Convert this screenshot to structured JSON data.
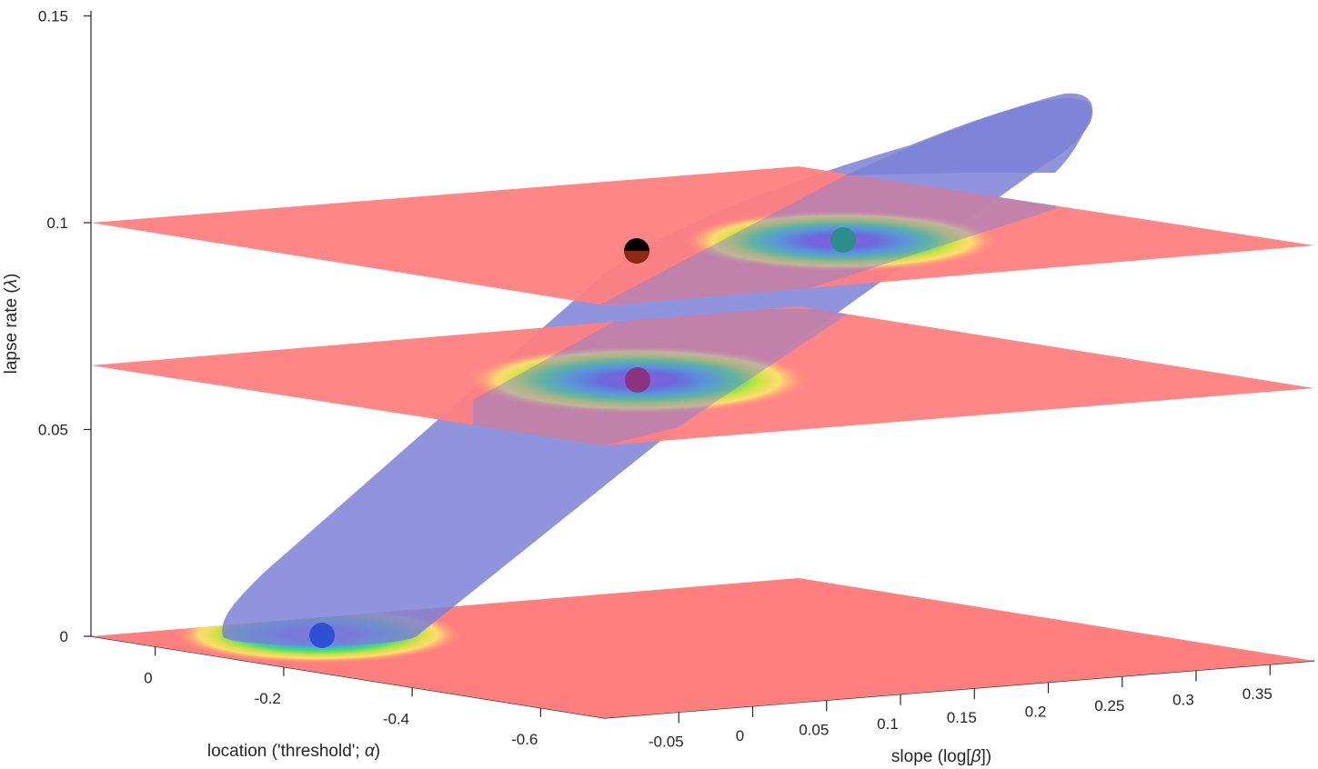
{
  "chart_data": {
    "type": "surface3d",
    "title": "",
    "xlabel_prefix": "location  ('threshold';  ",
    "xlabel_symbol": "α",
    "xlabel_suffix": ")",
    "ylabel_prefix": "slope  (log[",
    "ylabel_symbol": "β",
    "ylabel_suffix": "])",
    "zlabel_prefix": "lapse  rate  (",
    "zlabel_symbol": "λ",
    "zlabel_suffix": ")",
    "x_ticks": [
      0,
      -0.2,
      -0.4,
      -0.6
    ],
    "x_tick_labels": [
      "0",
      "-0.2",
      "-0.4",
      "-0.6"
    ],
    "y_ticks": [
      -0.05,
      0,
      0.05,
      0.1,
      0.15,
      0.2,
      0.25,
      0.3,
      0.35
    ],
    "y_tick_labels": [
      "-0.05",
      "0",
      "0.05",
      "0.1",
      "0.15",
      "0.2",
      "0.25",
      "0.3",
      "0.35"
    ],
    "z_ticks": [
      0,
      0.05,
      0.1,
      0.15
    ],
    "z_tick_labels": [
      "0",
      "0.05",
      "0.1",
      "0.15"
    ],
    "zlim": [
      0,
      0.15
    ],
    "slices": [
      {
        "z": 0.0,
        "peak_x": -0.27,
        "peak_y": -0.13
      },
      {
        "z": 0.065,
        "peak_x": -0.43,
        "peak_y": 0.05
      },
      {
        "z": 0.1,
        "peak_x": -0.48,
        "peak_y": 0.15
      }
    ],
    "markers": [
      {
        "x": -0.27,
        "y": -0.13,
        "z": 0.0,
        "color": "#2f4fd4"
      },
      {
        "x": -0.43,
        "y": 0.05,
        "z": 0.065,
        "color": "#8e2a6e"
      },
      {
        "x": -0.48,
        "y": 0.15,
        "z": 0.1,
        "color": "#2c8d8b"
      },
      {
        "x": -0.33,
        "y": 0.02,
        "z": 0.1,
        "color": "#000000"
      }
    ],
    "colors": {
      "plane": "#ff7f7f",
      "ellipsoid": "#7b81d6",
      "axis": "#262626"
    }
  }
}
